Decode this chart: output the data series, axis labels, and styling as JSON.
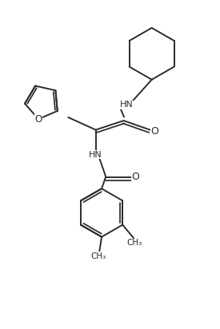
{
  "background_color": "#ffffff",
  "line_color": "#2c2c2c",
  "line_width": 1.4,
  "figsize": [
    2.75,
    4.12
  ],
  "dpi": 100,
  "xlim": [
    0,
    10
  ],
  "ylim": [
    0,
    15
  ]
}
